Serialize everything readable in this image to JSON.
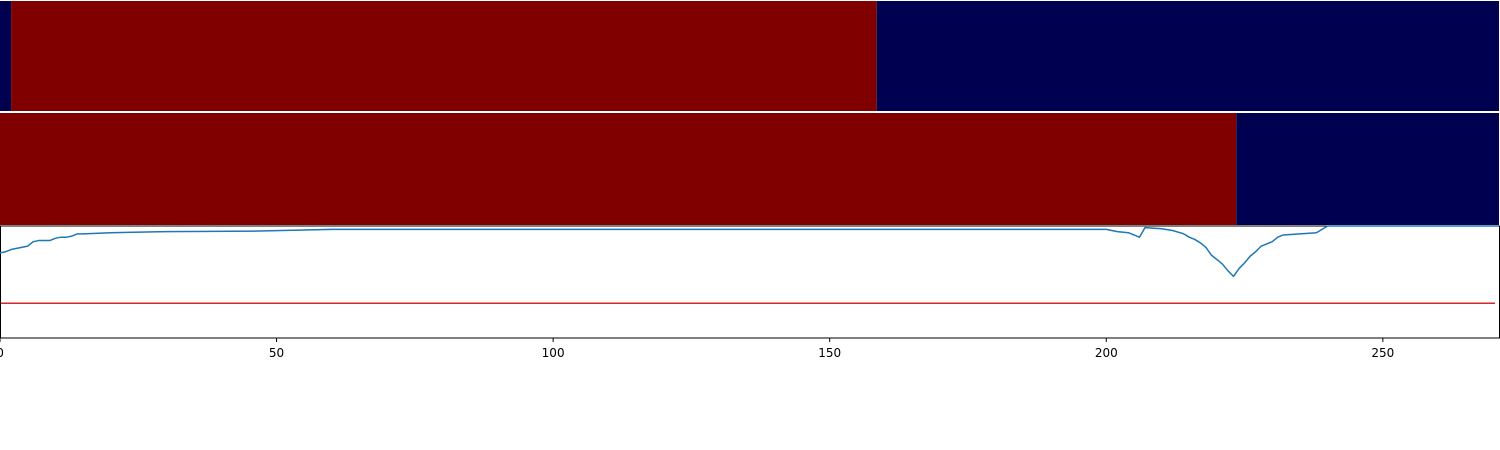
{
  "chart_data": [
    {
      "type": "heatmap",
      "xlim": [
        0,
        271
      ],
      "segments": [
        {
          "x0": 0,
          "x1": 2,
          "value": "low"
        },
        {
          "x0": 2,
          "x1": 158.5,
          "value": "high"
        },
        {
          "x0": 158.5,
          "x1": 271,
          "value": "low"
        }
      ],
      "colors": {
        "high": "#800000",
        "low": "#000050"
      }
    },
    {
      "type": "heatmap",
      "xlim": [
        0,
        271
      ],
      "segments": [
        {
          "x0": 0,
          "x1": 223.5,
          "value": "high"
        },
        {
          "x0": 223.5,
          "x1": 271,
          "value": "low"
        }
      ],
      "colors": {
        "high": "#800000",
        "low": "#000050"
      }
    },
    {
      "type": "line",
      "xlim": [
        0,
        271
      ],
      "ylim": [
        0,
        1
      ],
      "grid": false,
      "xticks": [
        0,
        50,
        100,
        150,
        200,
        250
      ],
      "threshold": {
        "value": 0.31,
        "color": "#d62728"
      },
      "series": [
        {
          "color": "#1f77b4",
          "x": [
            0,
            1,
            2,
            3,
            4,
            5,
            6,
            7,
            9,
            10,
            11,
            12,
            13,
            14,
            15,
            20,
            30,
            47,
            60,
            200,
            202,
            204,
            205,
            206,
            207,
            210,
            212,
            214,
            215,
            216,
            217,
            218,
            219,
            220,
            221,
            222,
            223,
            224,
            225,
            226,
            227,
            228,
            229,
            230,
            231,
            232,
            235,
            238,
            239,
            240,
            271
          ],
          "y": [
            0.76,
            0.77,
            0.79,
            0.8,
            0.81,
            0.82,
            0.86,
            0.87,
            0.87,
            0.89,
            0.9,
            0.9,
            0.91,
            0.93,
            0.93,
            0.94,
            0.95,
            0.955,
            0.97,
            0.97,
            0.95,
            0.94,
            0.92,
            0.9,
            0.985,
            0.975,
            0.96,
            0.93,
            0.9,
            0.88,
            0.85,
            0.81,
            0.74,
            0.7,
            0.66,
            0.6,
            0.55,
            0.62,
            0.67,
            0.73,
            0.77,
            0.82,
            0.84,
            0.86,
            0.9,
            0.92,
            0.93,
            0.94,
            0.97,
            1.0,
            1.0
          ]
        }
      ]
    }
  ]
}
